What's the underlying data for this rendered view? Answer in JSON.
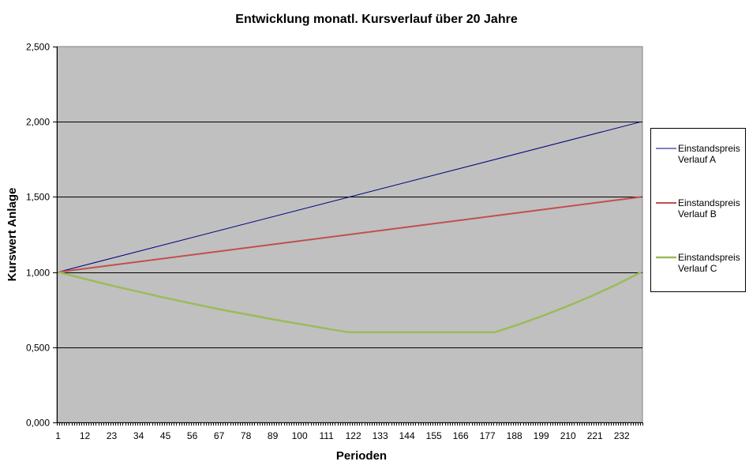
{
  "chart_data": {
    "type": "line",
    "title": "Entwicklung  monatl. Kursverlauf über 20 Jahre",
    "xlabel": "Perioden",
    "ylabel": "Kurswert Anlage",
    "xlim": [
      1,
      240
    ],
    "ylim": [
      0,
      2.5
    ],
    "x_tick_labels": [
      "1",
      "12",
      "23",
      "34",
      "45",
      "56",
      "67",
      "78",
      "89",
      "100",
      "111",
      "122",
      "133",
      "144",
      "155",
      "166",
      "177",
      "188",
      "199",
      "210",
      "221",
      "232"
    ],
    "y_ticks": [
      0,
      0.5,
      1.0,
      1.5,
      2.0,
      2.5
    ],
    "y_tick_labels": [
      "0,000",
      "0,500",
      "1,000",
      "1,500",
      "2,000",
      "2,500"
    ],
    "grid": "horizontal major",
    "plot_background": "#c0c0c0",
    "legend_placement": "right",
    "series": [
      {
        "name": "Einstandspreis Verlauf A",
        "color": "#000080",
        "x": [
          1,
          240
        ],
        "y": [
          1.0,
          2.0
        ]
      },
      {
        "name": "Einstandspreis Verlauf B",
        "color": "#c0504d",
        "x": [
          1,
          240
        ],
        "y": [
          1.0,
          1.5
        ]
      },
      {
        "name": "Einstandspreis Verlauf C",
        "color": "#9bbb59",
        "x": [
          1,
          23,
          45,
          67,
          89,
          111,
          120,
          180,
          190,
          200,
          210,
          220,
          230,
          240
        ],
        "y": [
          1.0,
          0.91,
          0.828,
          0.753,
          0.686,
          0.624,
          0.6,
          0.6,
          0.653,
          0.711,
          0.775,
          0.843,
          0.918,
          1.0
        ]
      }
    ]
  }
}
